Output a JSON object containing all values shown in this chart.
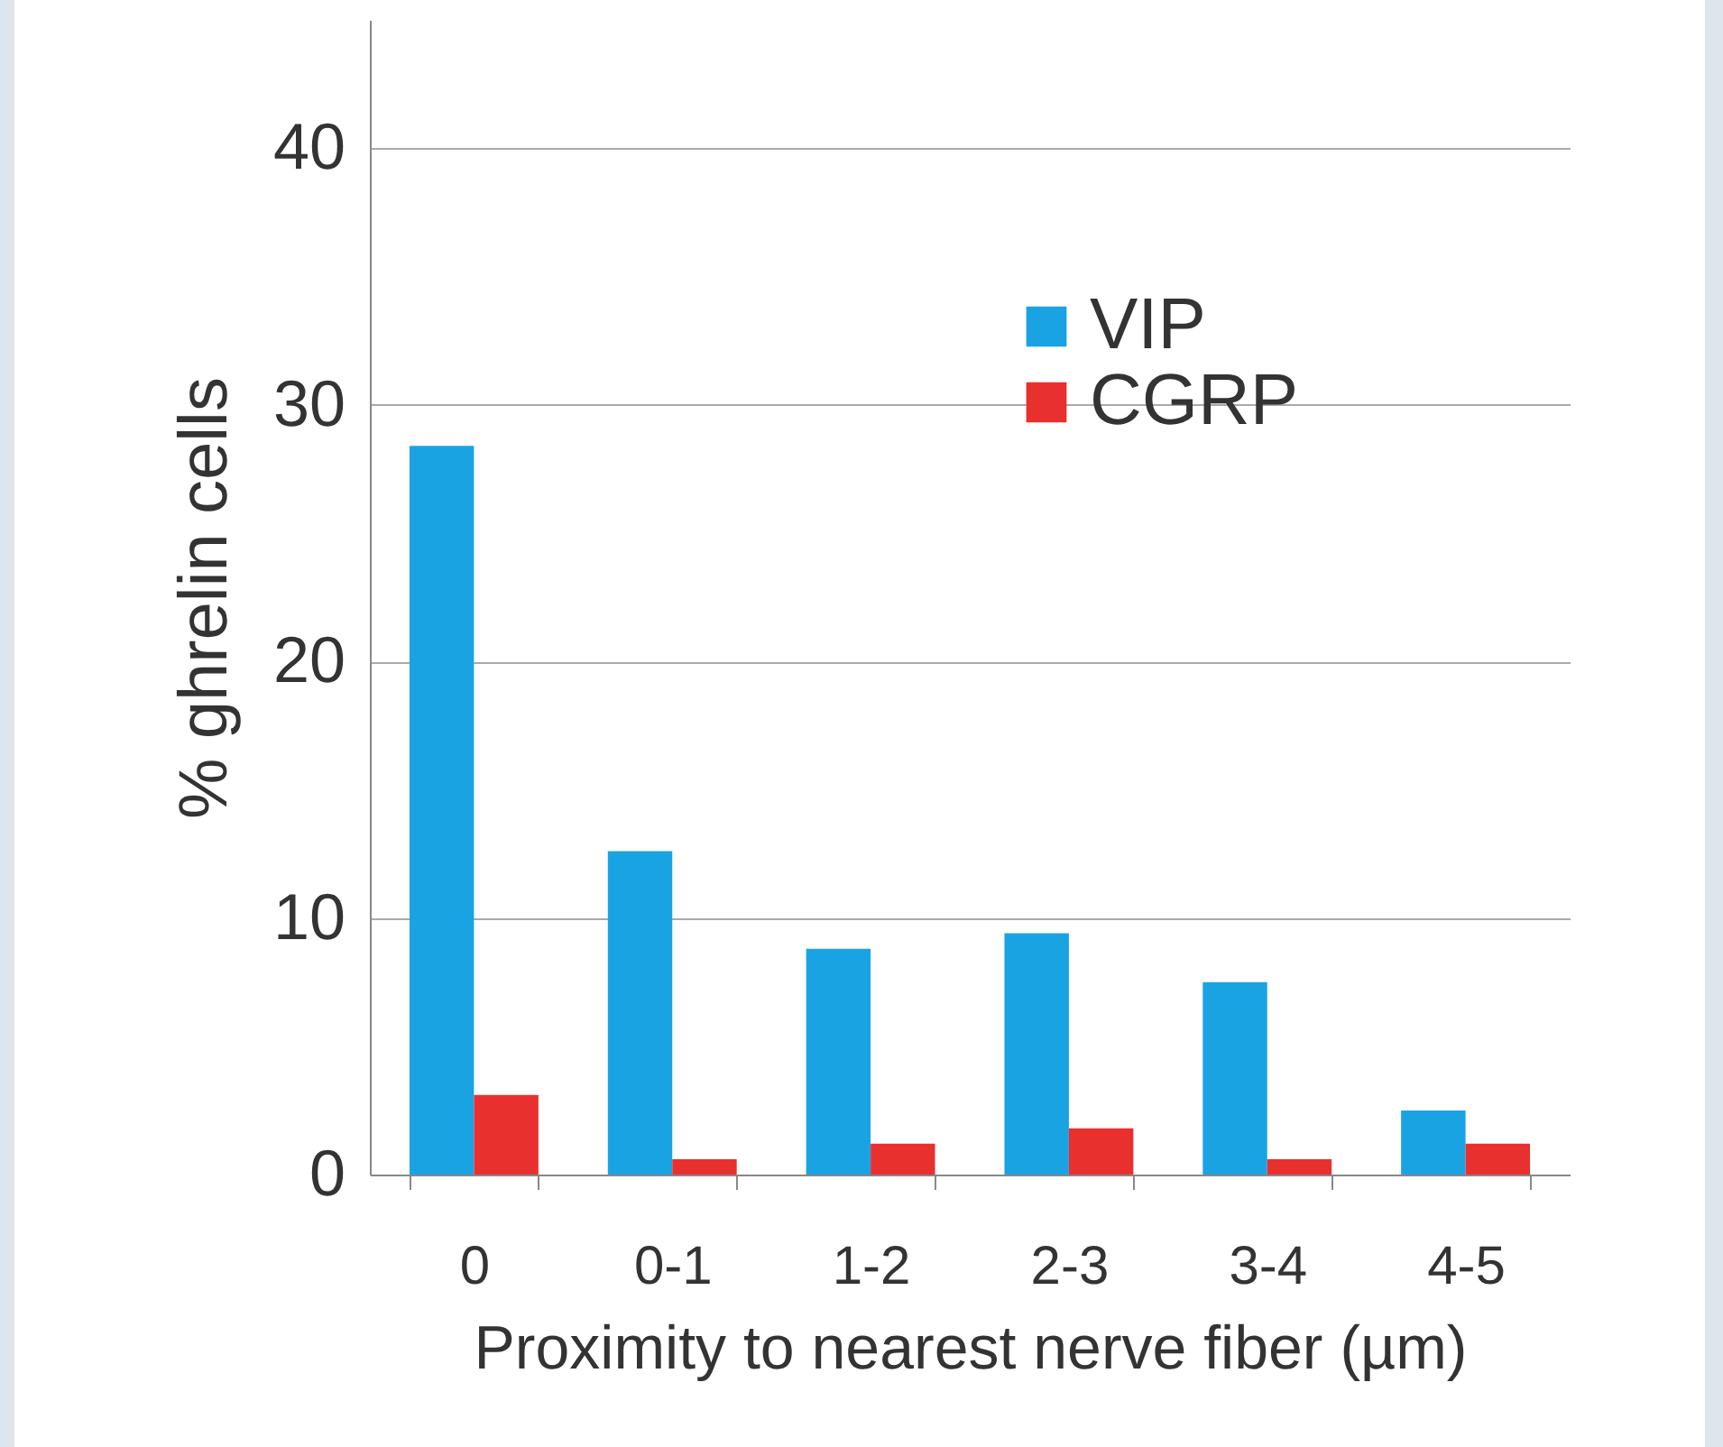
{
  "chart_data": {
    "type": "bar",
    "xlabel": "Proximity to nearest nerve fiber (µm)",
    "ylabel": "% ghrelin cells",
    "categories": [
      "0",
      "0-1",
      "1-2",
      "2-3",
      "3-4",
      "4-5"
    ],
    "series": [
      {
        "name": "VIP",
        "color": "#1aa3e3",
        "values": [
          28.4,
          12.6,
          8.8,
          9.4,
          7.5,
          2.5
        ]
      },
      {
        "name": "CGRP",
        "color": "#e8302e",
        "values": [
          3.1,
          0.6,
          1.2,
          1.8,
          0.6,
          1.2
        ]
      }
    ],
    "ylim": [
      0,
      45
    ],
    "yticks": [
      0,
      10,
      20,
      30,
      40
    ],
    "grid": "y",
    "legend": "top right"
  }
}
